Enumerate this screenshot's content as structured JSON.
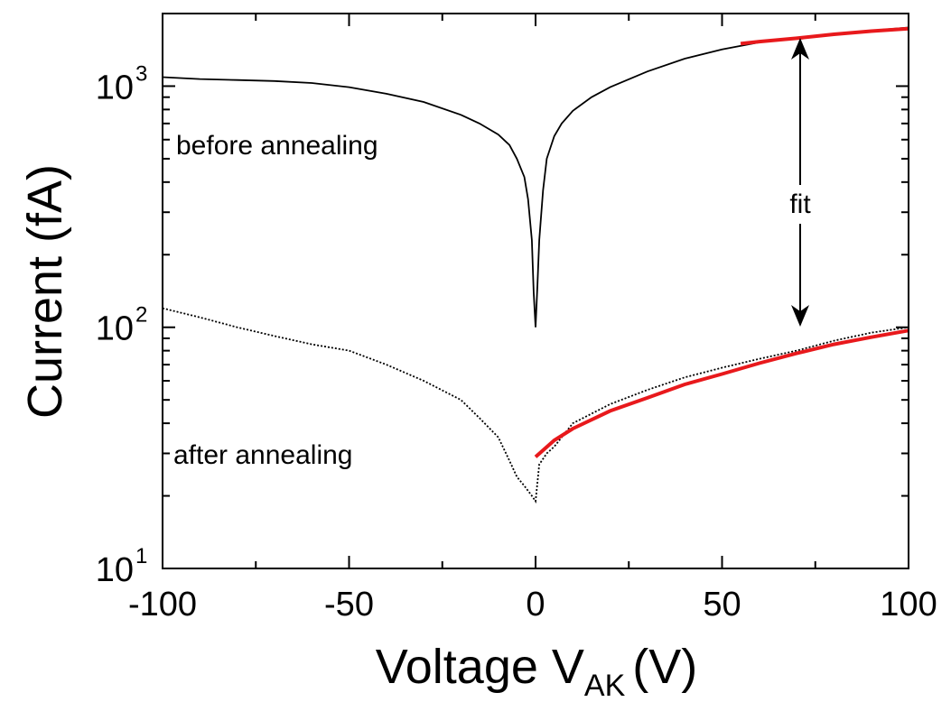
{
  "chart_data": {
    "type": "line",
    "title": "",
    "xlabel": "Voltage V",
    "xlabel_sub": "AK",
    "xlabel_unit": "(V)",
    "ylabel": "Current (fA)",
    "xlim": [
      -100,
      100
    ],
    "ylim": [
      10,
      2000
    ],
    "yscale": "log",
    "grid": false,
    "x_ticks": [
      -100,
      -50,
      0,
      50,
      100
    ],
    "x_tick_labels": [
      "-100",
      "-50",
      "0",
      "50",
      "100"
    ],
    "y_ticks": [
      10,
      100,
      1000
    ],
    "y_tick_labels": [
      {
        "base": "10",
        "exp": "1"
      },
      {
        "base": "10",
        "exp": "2"
      },
      {
        "base": "10",
        "exp": "3"
      }
    ],
    "colors": {
      "data": "#000000",
      "fit": "#e8191c"
    },
    "series": [
      {
        "style": "solid",
        "color": "#000000",
        "x": [
          -100,
          -90,
          -80,
          -70,
          -60,
          -50,
          -40,
          -30,
          -20,
          -15,
          -10,
          -7,
          -5,
          -3,
          -2,
          -1,
          -0.5,
          0,
          0.5,
          1,
          2,
          3,
          5,
          7,
          10,
          15,
          20,
          30,
          40,
          50,
          60,
          70,
          80,
          90,
          100
        ],
        "y": [
          1090,
          1070,
          1060,
          1050,
          1030,
          990,
          930,
          860,
          760,
          700,
          630,
          570,
          500,
          420,
          340,
          230,
          140,
          100,
          150,
          230,
          370,
          500,
          620,
          700,
          790,
          900,
          990,
          1150,
          1300,
          1420,
          1520,
          1580,
          1630,
          1700,
          1750
        ]
      },
      {
        "style": "dotted",
        "color": "#000000",
        "x": [
          -100,
          -90,
          -80,
          -70,
          -60,
          -50,
          -40,
          -30,
          -20,
          -15,
          -10,
          -7,
          -5,
          -3,
          -1,
          0,
          1,
          3,
          5,
          10,
          20,
          30,
          40,
          50,
          60,
          70,
          80,
          90,
          100
        ],
        "y": [
          120,
          110,
          100,
          92,
          85,
          80,
          70,
          60,
          50,
          42,
          35,
          28,
          24,
          22,
          20,
          19,
          27,
          30,
          32,
          40,
          48,
          55,
          62,
          68,
          74,
          80,
          88,
          95,
          100
        ]
      },
      {
        "style": "fit",
        "color": "#e8191c",
        "x": [
          55,
          60,
          70,
          80,
          90,
          100
        ],
        "y": [
          1500,
          1530,
          1580,
          1640,
          1690,
          1730
        ]
      },
      {
        "style": "fit",
        "color": "#e8191c",
        "x": [
          0,
          5,
          10,
          20,
          30,
          40,
          50,
          60,
          70,
          80,
          90,
          100
        ],
        "y": [
          29,
          34,
          38,
          45,
          51,
          58,
          64,
          71,
          78,
          85,
          91,
          97
        ]
      }
    ],
    "annotations": [
      "before annealing",
      "after annealing",
      "fit"
    ]
  }
}
